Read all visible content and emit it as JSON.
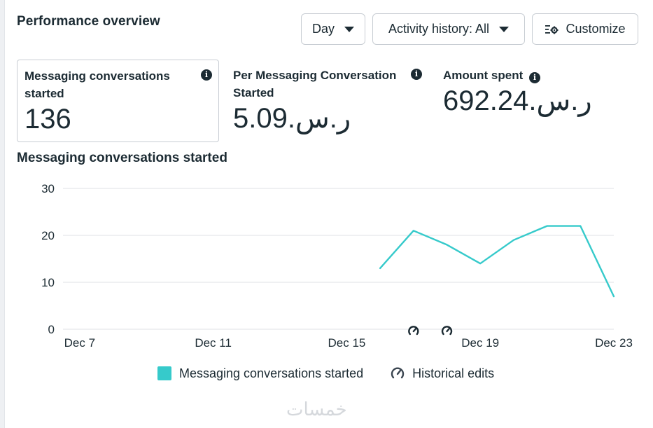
{
  "header": {
    "title": "Performance overview",
    "day_label": "Day",
    "activity_label": "Activity history: All",
    "customize_label": "Customize"
  },
  "metrics": [
    {
      "label": "Messaging conversations started",
      "value": "136"
    },
    {
      "label": "Per Messaging Conversation Started",
      "value": "5.09.ر.س"
    },
    {
      "label": "Amount spent",
      "value": "692.24.ر.س"
    }
  ],
  "chart_title": "Messaging conversations started",
  "chart_data": {
    "type": "line",
    "x_ticks": [
      "Dec 7",
      "Dec 11",
      "Dec 15",
      "Dec 19",
      "Dec 23"
    ],
    "y_ticks": [
      0,
      10,
      20,
      30
    ],
    "ylim": [
      0,
      30
    ],
    "series": [
      {
        "name": "Messaging conversations started",
        "color": "#36cacb",
        "x": [
          "Dec 16",
          "Dec 17",
          "Dec 18",
          "Dec 19",
          "Dec 20",
          "Dec 21",
          "Dec 22",
          "Dec 23"
        ],
        "values": [
          13,
          21,
          18,
          14,
          19,
          22,
          22,
          7
        ]
      }
    ],
    "historical_edits": [
      "Dec 17",
      "Dec 18"
    ],
    "legend": [
      "Messaging conversations started",
      "Historical edits"
    ],
    "legend_position": "bottom",
    "grid": true
  },
  "watermark": "خمسات"
}
